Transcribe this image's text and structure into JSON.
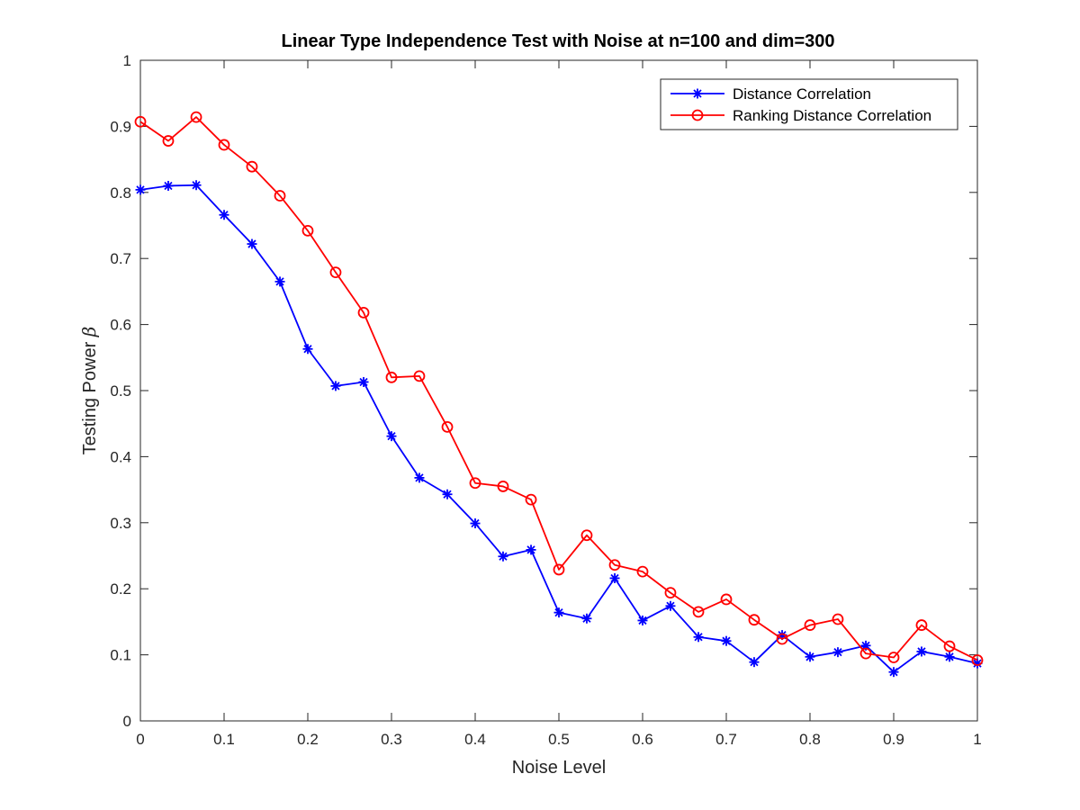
{
  "chart_data": {
    "type": "line",
    "title": "Linear Type Independence Test with Noise at n=100 and dim=300",
    "xlabel": "Noise Level",
    "ylabel": "Testing Power",
    "ylabel_symbol": "β",
    "xlim": [
      0,
      1
    ],
    "ylim": [
      0,
      1
    ],
    "xticks": [
      0,
      0.1,
      0.2,
      0.3,
      0.4,
      0.5,
      0.6,
      0.7,
      0.8,
      0.9,
      1
    ],
    "yticks": [
      0,
      0.1,
      0.2,
      0.3,
      0.4,
      0.5,
      0.6,
      0.7,
      0.8,
      0.9,
      1
    ],
    "xtick_labels": [
      "0",
      "0.1",
      "0.2",
      "0.3",
      "0.4",
      "0.5",
      "0.6",
      "0.7",
      "0.8",
      "0.9",
      "1"
    ],
    "ytick_labels": [
      "0",
      "0.1",
      "0.2",
      "0.3",
      "0.4",
      "0.5",
      "0.6",
      "0.7",
      "0.8",
      "0.9",
      "1"
    ],
    "grid": false,
    "legend_position": "top-right",
    "x": [
      0,
      0.0333,
      0.0667,
      0.1,
      0.1333,
      0.1667,
      0.2,
      0.2333,
      0.2667,
      0.3,
      0.3333,
      0.3667,
      0.4,
      0.4333,
      0.4667,
      0.5,
      0.5333,
      0.5667,
      0.6,
      0.6333,
      0.6667,
      0.7,
      0.7333,
      0.7667,
      0.8,
      0.8333,
      0.8667,
      0.9,
      0.9333,
      0.9667,
      1
    ],
    "series": [
      {
        "name": "Distance Correlation",
        "color": "#0000ff",
        "marker": "asterisk",
        "values": [
          0.804,
          0.81,
          0.811,
          0.766,
          0.722,
          0.665,
          0.563,
          0.507,
          0.513,
          0.431,
          0.368,
          0.343,
          0.299,
          0.249,
          0.259,
          0.164,
          0.155,
          0.216,
          0.152,
          0.174,
          0.127,
          0.121,
          0.089,
          0.13,
          0.097,
          0.104,
          0.114,
          0.074,
          0.105,
          0.097,
          0.087
        ]
      },
      {
        "name": "Ranking Distance Correlation",
        "color": "#ff0000",
        "marker": "circle",
        "values": [
          0.907,
          0.878,
          0.914,
          0.872,
          0.839,
          0.795,
          0.742,
          0.679,
          0.618,
          0.52,
          0.522,
          0.445,
          0.36,
          0.355,
          0.335,
          0.229,
          0.281,
          0.236,
          0.226,
          0.194,
          0.165,
          0.184,
          0.153,
          0.124,
          0.145,
          0.154,
          0.102,
          0.096,
          0.145,
          0.113,
          0.092
        ]
      }
    ]
  }
}
